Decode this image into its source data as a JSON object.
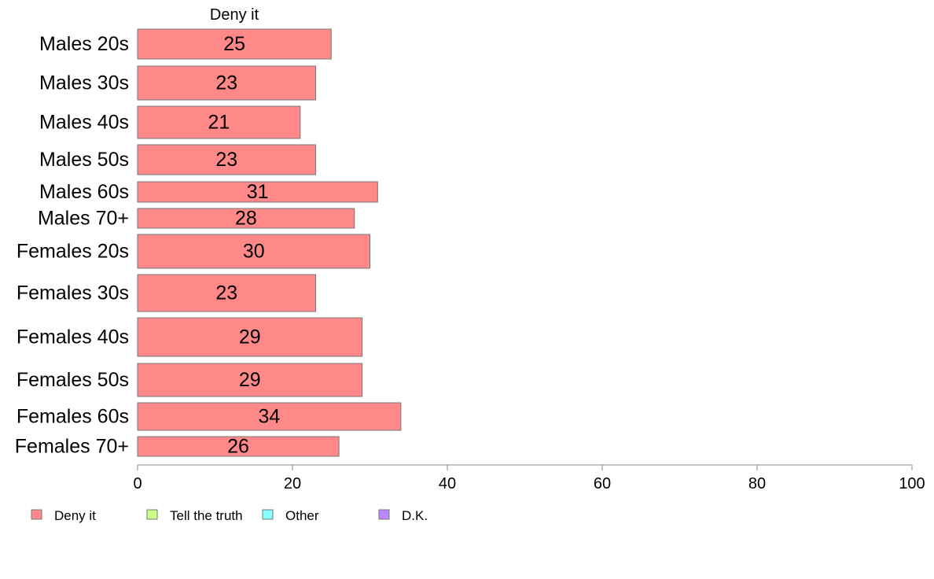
{
  "chart_data": {
    "type": "bar",
    "orientation": "horizontal",
    "stacked": true,
    "title": "Deny it",
    "categories": [
      "Males 20s",
      "Males 30s",
      "Males 40s",
      "Males 50s",
      "Males 60s",
      "Males 70+",
      "Females 20s",
      "Females 30s",
      "Females 40s",
      "Females 50s",
      "Females 60s",
      "Females 70+"
    ],
    "series": [
      {
        "name": "Deny it",
        "color": "#ff8888",
        "values": [
          25,
          23,
          21,
          23,
          31,
          28,
          30,
          23,
          29,
          29,
          34,
          26
        ]
      }
    ],
    "legend": [
      {
        "label": "Deny it",
        "color": "#ff8888"
      },
      {
        "label": "Tell the truth",
        "color": "#ccff88"
      },
      {
        "label": "Other",
        "color": "#88ffff"
      },
      {
        "label": "D.K.",
        "color": "#bb88ff"
      }
    ],
    "xlim": [
      0,
      100
    ],
    "xticks": [
      "0",
      "20",
      "40",
      "60",
      "80",
      "100"
    ],
    "xlabel": "",
    "ylabel": "",
    "grid": false,
    "legend_position": "bottom-left",
    "bar_edge_color": "#777777"
  }
}
